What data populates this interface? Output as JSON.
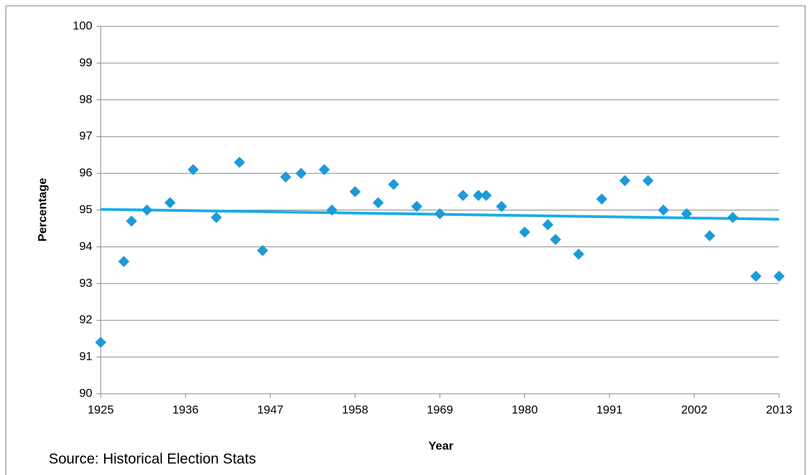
{
  "chart_data": {
    "type": "scatter",
    "x_label": "Year",
    "y_label": "Percentage",
    "source": "Source: Historical Election Stats",
    "xlim": [
      1925,
      2013
    ],
    "xticks": [
      1925,
      1936,
      1947,
      1958,
      1969,
      1980,
      1991,
      2002,
      2013
    ],
    "ylim": [
      90,
      100
    ],
    "yticks": [
      90,
      91,
      92,
      93,
      94,
      95,
      96,
      97,
      98,
      99,
      100
    ],
    "grid": true,
    "color": "#1b9bd7",
    "x": [
      1925,
      1928,
      1929,
      1931,
      1934,
      1937,
      1940,
      1943,
      1946,
      1949,
      1951,
      1954,
      1955,
      1958,
      1961,
      1963,
      1966,
      1969,
      1972,
      1974,
      1975,
      1977,
      1980,
      1983,
      1984,
      1987,
      1990,
      1993,
      1996,
      1998,
      2001,
      2004,
      2007,
      2010,
      2013
    ],
    "values": [
      91.4,
      93.6,
      94.7,
      95.0,
      95.2,
      96.1,
      94.8,
      96.3,
      93.9,
      95.9,
      96.0,
      96.1,
      95.0,
      95.5,
      95.2,
      95.7,
      95.1,
      94.9,
      95.4,
      95.4,
      95.4,
      95.1,
      94.4,
      94.6,
      94.2,
      93.8,
      95.3,
      95.8,
      95.8,
      95.0,
      94.9,
      94.3,
      94.8,
      93.2,
      93.2
    ],
    "trendline": {
      "color": "#1cade4",
      "x": [
        1925,
        2013
      ],
      "values": [
        95.02,
        94.75
      ]
    }
  }
}
